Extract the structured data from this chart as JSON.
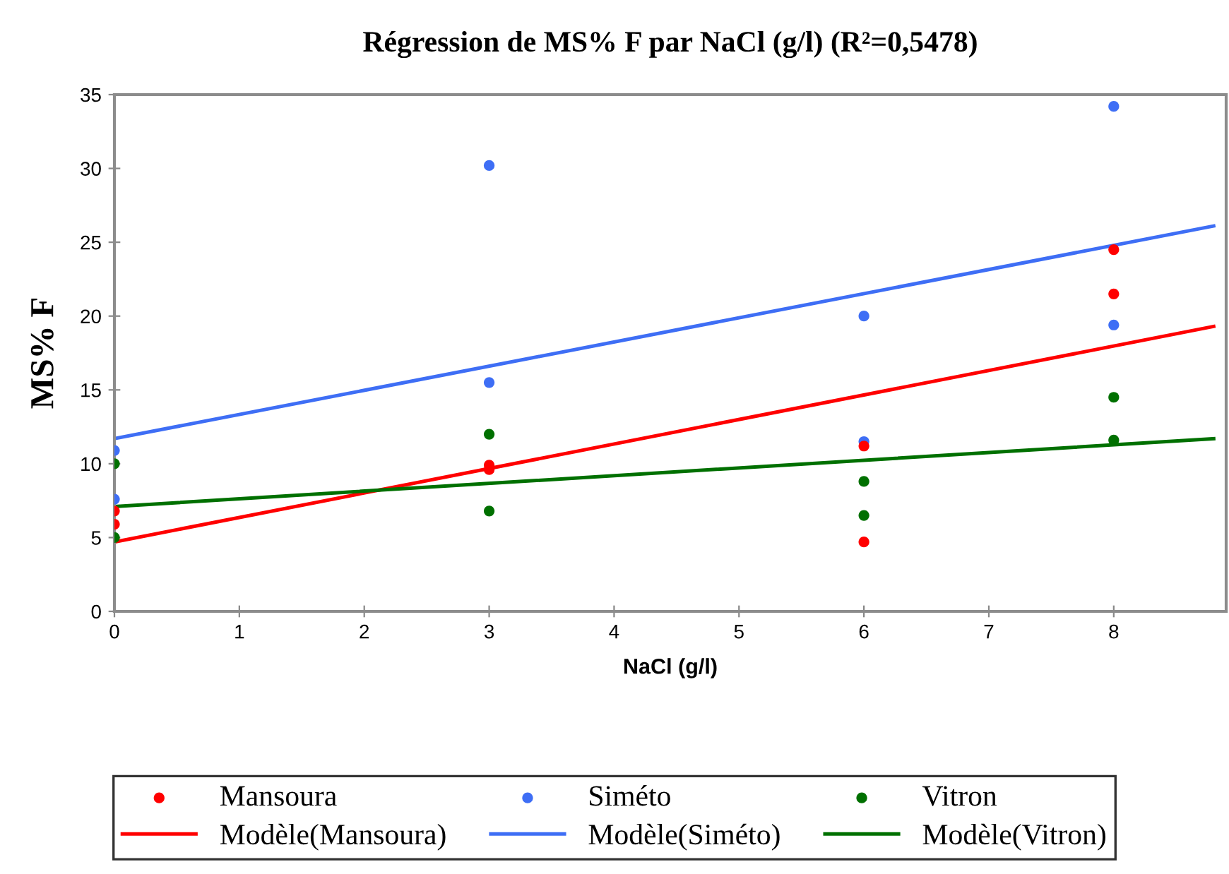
{
  "chart_data": {
    "type": "scatter",
    "title": "Régression de MS% F par NaCl (g/l) (R²=0,5478)",
    "xlabel": "NaCl (g/l)",
    "ylabel": "MS% F",
    "xlim": [
      0,
      8.9
    ],
    "xticks": [
      0,
      1,
      2,
      3,
      4,
      5,
      6,
      7,
      8
    ],
    "ylim": [
      0,
      35
    ],
    "yticks": [
      0,
      5,
      10,
      15,
      20,
      25,
      30,
      35
    ],
    "grid": false,
    "legend": "bottom",
    "series": [
      {
        "name": "Mansoura",
        "marker": "circle",
        "color": "#ff0000",
        "x": [
          0,
          0,
          3,
          3,
          6,
          6,
          8,
          8
        ],
        "values": [
          6.8,
          5.9,
          9.9,
          9.6,
          11.2,
          4.7,
          24.5,
          21.5
        ]
      },
      {
        "name": "Siméto",
        "marker": "circle",
        "color": "#3e6ef5",
        "x": [
          0,
          0,
          3,
          3,
          6,
          6,
          8,
          8
        ],
        "values": [
          10.9,
          7.6,
          30.2,
          15.5,
          20.0,
          11.5,
          34.2,
          19.4
        ]
      },
      {
        "name": "Vitron",
        "marker": "circle",
        "color": "#007000",
        "x": [
          0,
          0,
          3,
          3,
          6,
          6,
          8,
          8
        ],
        "values": [
          10.0,
          5.0,
          12.0,
          6.8,
          8.8,
          6.5,
          14.5,
          11.6
        ]
      },
      {
        "name": "Modèle(Mansoura)",
        "type": "line",
        "marker": "none",
        "color": "#ff0000",
        "x": [
          0,
          8.8
        ],
        "values": [
          4.7,
          19.3
        ]
      },
      {
        "name": "Modèle(Siméto)",
        "type": "line",
        "marker": "none",
        "color": "#3e6ef5",
        "x": [
          0,
          8.8
        ],
        "values": [
          11.7,
          26.1
        ]
      },
      {
        "name": "Modèle(Vitron)",
        "type": "line",
        "marker": "none",
        "color": "#007000",
        "x": [
          0,
          8.8
        ],
        "values": [
          7.1,
          11.7
        ]
      }
    ]
  }
}
